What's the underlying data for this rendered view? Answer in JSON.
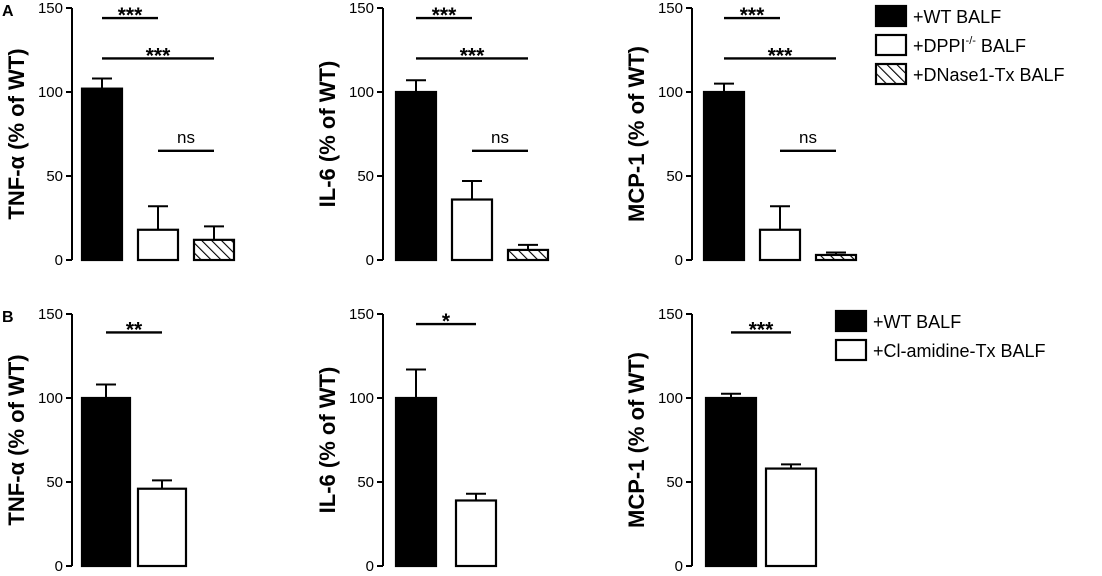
{
  "panels": [
    {
      "label": "A"
    },
    {
      "label": "B"
    }
  ],
  "legends": [
    {
      "items": [
        {
          "label": "+WT BALF",
          "fill": "black"
        },
        {
          "label": "+DPPI",
          "sup": "-/-",
          "suffix": " BALF",
          "fill": "white"
        },
        {
          "label": "+DNase1-Tx BALF",
          "fill": "hatch"
        }
      ]
    },
    {
      "items": [
        {
          "label": "+WT BALF",
          "fill": "black"
        },
        {
          "label": "+Cl-amidine-Tx BALF",
          "fill": "white"
        }
      ]
    }
  ],
  "colors": {
    "black": "#000000",
    "white": "#ffffff"
  },
  "chart_data": [
    {
      "type": "bar",
      "panel": "A",
      "ylabel": "TNF-α (% of WT)",
      "ylim": [
        0,
        150
      ],
      "yticks": [
        0,
        50,
        100,
        150
      ],
      "categories": [
        "+WT BALF",
        "+DPPI-/- BALF",
        "+DNase1-Tx BALF"
      ],
      "values": [
        102,
        18,
        12
      ],
      "errors": [
        6,
        14,
        8
      ],
      "fills": [
        "black",
        "white",
        "hatch"
      ],
      "annotations": [
        {
          "from": 0,
          "to": 1,
          "text": "***",
          "y": 144
        },
        {
          "from": 0,
          "to": 2,
          "text": "***",
          "y": 120
        },
        {
          "from": 1,
          "to": 2,
          "text": "ns",
          "y": 65
        }
      ]
    },
    {
      "type": "bar",
      "panel": "A",
      "ylabel": "IL-6 (% of WT)",
      "ylim": [
        0,
        150
      ],
      "yticks": [
        0,
        50,
        100,
        150
      ],
      "categories": [
        "+WT BALF",
        "+DPPI-/- BALF",
        "+DNase1-Tx BALF"
      ],
      "values": [
        100,
        36,
        6
      ],
      "errors": [
        7,
        11,
        3
      ],
      "fills": [
        "black",
        "white",
        "hatch"
      ],
      "annotations": [
        {
          "from": 0,
          "to": 1,
          "text": "***",
          "y": 144
        },
        {
          "from": 0,
          "to": 2,
          "text": "***",
          "y": 120
        },
        {
          "from": 1,
          "to": 2,
          "text": "ns",
          "y": 65
        }
      ]
    },
    {
      "type": "bar",
      "panel": "A",
      "ylabel": "MCP-1 (% of WT)",
      "ylim": [
        0,
        150
      ],
      "yticks": [
        0,
        50,
        100,
        150
      ],
      "categories": [
        "+WT BALF",
        "+DPPI-/- BALF",
        "+DNase1-Tx BALF"
      ],
      "values": [
        100,
        18,
        3
      ],
      "errors": [
        5,
        14,
        1.5
      ],
      "fills": [
        "black",
        "white",
        "hatch"
      ],
      "annotations": [
        {
          "from": 0,
          "to": 1,
          "text": "***",
          "y": 144
        },
        {
          "from": 0,
          "to": 2,
          "text": "***",
          "y": 120
        },
        {
          "from": 1,
          "to": 2,
          "text": "ns",
          "y": 65
        }
      ]
    },
    {
      "type": "bar",
      "panel": "B",
      "ylabel": "TNF-α (% of WT)",
      "ylim": [
        0,
        150
      ],
      "yticks": [
        0,
        50,
        100,
        150
      ],
      "categories": [
        "+WT BALF",
        "+Cl-amidine-Tx BALF"
      ],
      "values": [
        100,
        46
      ],
      "errors": [
        8,
        5
      ],
      "fills": [
        "black",
        "white"
      ],
      "annotations": [
        {
          "from": 0,
          "to": 1,
          "text": "**",
          "y": 139
        }
      ]
    },
    {
      "type": "bar",
      "panel": "B",
      "ylabel": "IL-6 (% of WT)",
      "ylim": [
        0,
        150
      ],
      "yticks": [
        0,
        50,
        100,
        150
      ],
      "categories": [
        "+WT BALF",
        "+Cl-amidine-Tx BALF"
      ],
      "values": [
        100,
        39
      ],
      "errors": [
        17,
        4
      ],
      "fills": [
        "black",
        "white"
      ],
      "annotations": [
        {
          "from": 0,
          "to": 1,
          "text": "*",
          "y": 144
        }
      ]
    },
    {
      "type": "bar",
      "panel": "B",
      "ylabel": "MCP-1 (% of WT)",
      "ylim": [
        0,
        150
      ],
      "yticks": [
        0,
        50,
        100,
        150
      ],
      "categories": [
        "+WT BALF",
        "+Cl-amidine-Tx BALF"
      ],
      "values": [
        100,
        58
      ],
      "errors": [
        2.5,
        2.5
      ],
      "fills": [
        "black",
        "white"
      ],
      "annotations": [
        {
          "from": 0,
          "to": 1,
          "text": "***",
          "y": 139
        }
      ]
    }
  ]
}
